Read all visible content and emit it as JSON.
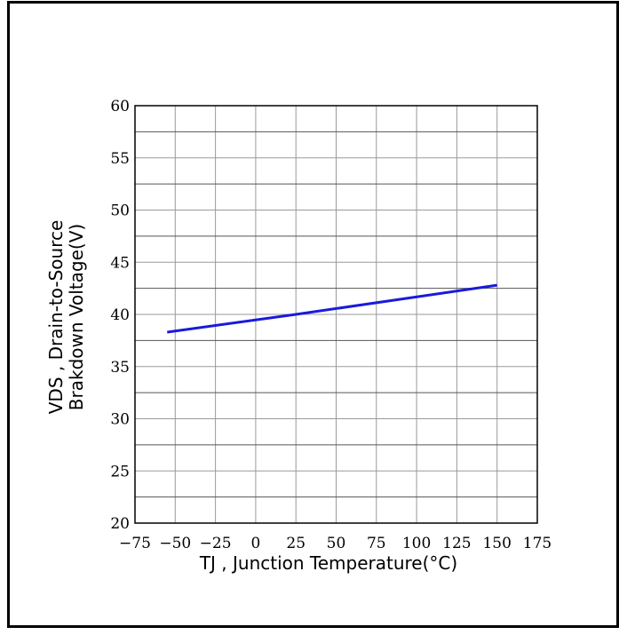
{
  "chart_data": {
    "type": "line",
    "xlabel": "TJ , Junction Temperature(°C)",
    "ylabel_line1": "VDS , Drain-to-Source",
    "ylabel_line2": "Brakdown Voltage(V)",
    "xlim": [
      -75,
      175
    ],
    "ylim": [
      20,
      60
    ],
    "x_ticks": [
      "−75",
      "−50",
      "−25",
      "0",
      "25",
      "50",
      "75",
      "100",
      "125",
      "150",
      "175"
    ],
    "y_ticks": [
      "20",
      "25",
      "30",
      "35",
      "40",
      "45",
      "50",
      "55",
      "60"
    ],
    "grid": true,
    "series": [
      {
        "color": "#1a1adc",
        "x": [
          -55,
          25,
          150
        ],
        "y": [
          38.3,
          40.0,
          42.8
        ]
      }
    ]
  }
}
